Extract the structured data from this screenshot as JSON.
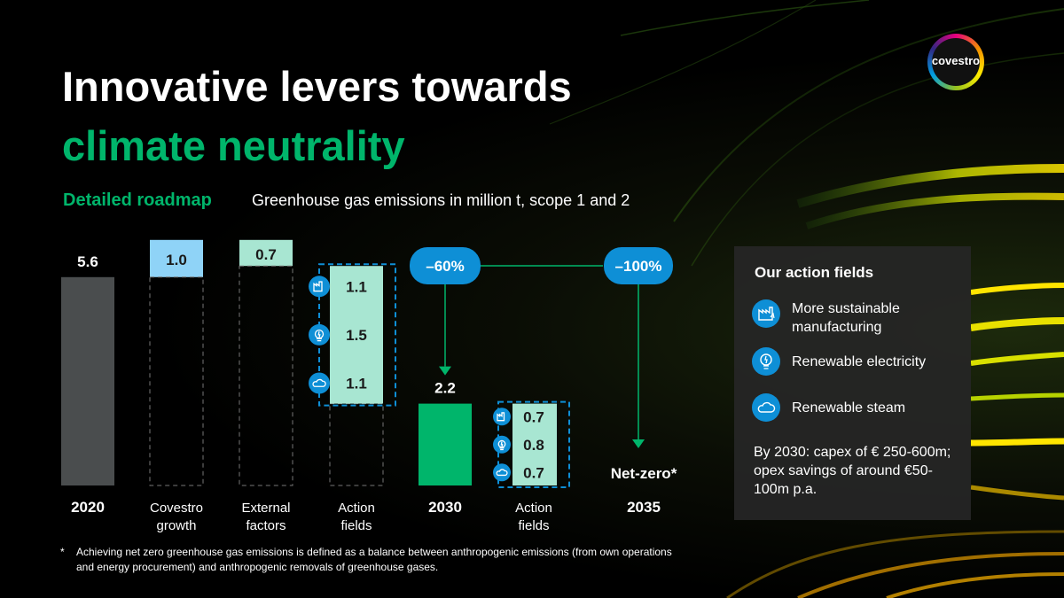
{
  "title": {
    "line1": "Innovative levers towards",
    "line2": "climate neutrality"
  },
  "subtitle": {
    "label": "Detailed roadmap",
    "text": "Greenhouse gas emissions in million t, scope 1 and 2"
  },
  "logo": {
    "text": "covestro"
  },
  "colors": {
    "green": "#00b56b",
    "mint": "#a8e6d2",
    "blue": "#0e8fd6",
    "light_blue": "#8fd3f7",
    "grey_bar": "#4a4d4e"
  },
  "chart_data": {
    "type": "bar",
    "subtype": "waterfall",
    "unit": "million t",
    "categories": [
      {
        "label": "2020",
        "kind": "total",
        "value": 5.6,
        "color": "#4a4d4e"
      },
      {
        "label": "Covestro growth",
        "kind": "increase",
        "value": 1.0,
        "color": "#8fd3f7"
      },
      {
        "label": "External factors",
        "kind": "decrease",
        "value": 0.7,
        "color": "#a8e6d2"
      },
      {
        "label": "Action fields",
        "kind": "decrease",
        "value": 3.7,
        "color": "#a8e6d2",
        "components": [
          {
            "icon": "factory-icon",
            "value": 1.1
          },
          {
            "icon": "lightbulb-icon",
            "value": 1.5
          },
          {
            "icon": "cloud-icon",
            "value": 1.1
          }
        ]
      },
      {
        "label": "2030",
        "kind": "total",
        "value": 2.2,
        "color": "#00b56b"
      },
      {
        "label": "Action fields",
        "kind": "decrease",
        "value": 2.2,
        "color": "#a8e6d2",
        "components": [
          {
            "icon": "factory-icon",
            "value": 0.7
          },
          {
            "icon": "lightbulb-icon",
            "value": 0.8
          },
          {
            "icon": "cloud-icon",
            "value": 0.7
          }
        ]
      },
      {
        "label": "2035",
        "kind": "total",
        "value": 0,
        "value_label": "Net-zero*",
        "color": "#00b56b"
      }
    ],
    "category_display": [
      [
        "2020"
      ],
      [
        "Covestro",
        "growth"
      ],
      [
        "External",
        "factors"
      ],
      [
        "Action",
        "fields"
      ],
      [
        "2030"
      ],
      [
        "Action",
        "fields"
      ],
      [
        "2035"
      ]
    ],
    "value_labels": [
      "5.6",
      "1.0",
      "0.7",
      "",
      "2.2",
      "",
      "Net-zero*"
    ],
    "component_labels": [
      [
        "1.1",
        "1.5",
        "1.1"
      ],
      [
        "0.7",
        "0.8",
        "0.7"
      ]
    ],
    "reductions": [
      {
        "label": "–60%",
        "from": "2020",
        "to": "2030"
      },
      {
        "label": "–100%",
        "from": "2020",
        "to": "2035"
      }
    ],
    "ylim": [
      0,
      6.6
    ]
  },
  "panel": {
    "title": "Our action fields",
    "items": [
      {
        "icon": "factory-icon",
        "label": "More sustainable manufacturing"
      },
      {
        "icon": "lightbulb-icon",
        "label": "Renewable electricity"
      },
      {
        "icon": "cloud-icon",
        "label": "Renewable steam"
      }
    ],
    "note": "By 2030: capex of € 250-600m; opex savings of around €50-100m p.a."
  },
  "footnote": {
    "marker": "*",
    "text": "Achieving net zero greenhouse gas emissions is defined as a balance between anthropogenic emissions (from own operations and energy procurement) and anthropogenic removals of greenhouse gases."
  }
}
